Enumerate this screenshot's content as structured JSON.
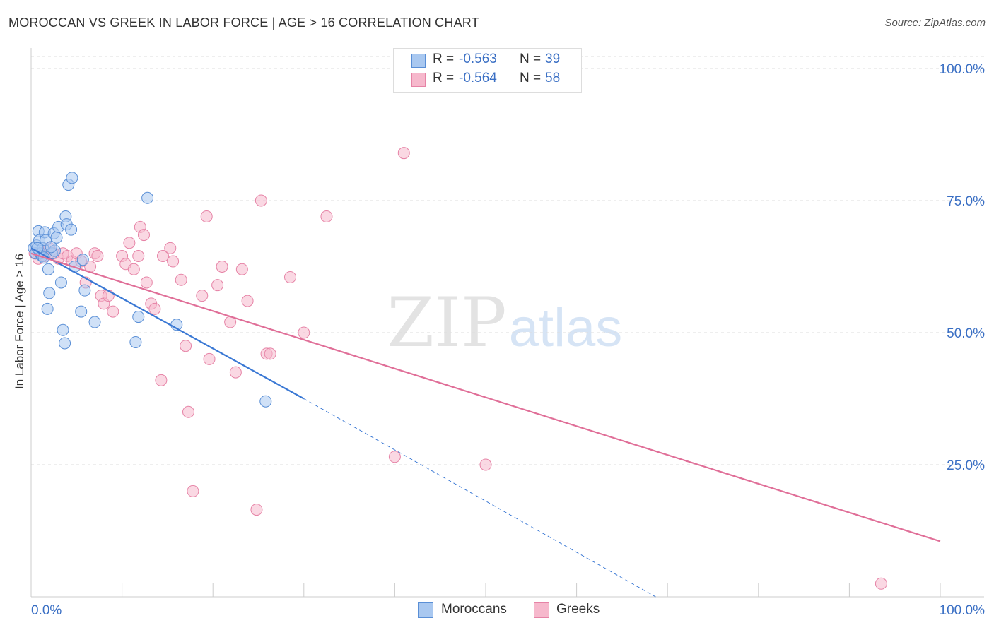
{
  "title": "MOROCCAN VS GREEK IN LABOR FORCE | AGE > 16 CORRELATION CHART",
  "source": "Source: ZipAtlas.com",
  "watermark": {
    "zip": "ZIP",
    "atlas": "atlas"
  },
  "legend": {
    "rows": [
      {
        "r_label": "R =",
        "r_value": "-0.563",
        "n_label": "N =",
        "n_value": "39"
      },
      {
        "r_label": "R =",
        "r_value": "-0.564",
        "n_label": "N =",
        "n_value": "58"
      }
    ]
  },
  "bottom_legend": {
    "moroccans": "Moroccans",
    "greeks": "Greeks"
  },
  "colors": {
    "moroccans_fill": "#a9c8f0",
    "moroccans_stroke": "#5a8fd6",
    "moroccans_line": "#3a78d4",
    "greeks_fill": "#f6b8cc",
    "greeks_stroke": "#e683a6",
    "greeks_line": "#e06f98",
    "tick_text": "#3a6fc4",
    "grid": "#dddddd"
  },
  "chart_data": {
    "type": "scatter",
    "title": "MOROCCAN VS GREEK IN LABOR FORCE | AGE > 16 CORRELATION CHART",
    "xlabel": "",
    "ylabel": "In Labor Force | Age > 16",
    "xlim": [
      0,
      100
    ],
    "ylim": [
      0,
      100
    ],
    "x_tick_labels": [
      {
        "value": 0,
        "label": "0.0%"
      },
      {
        "value": 100,
        "label": "100.0%"
      }
    ],
    "y_tick_labels": [
      {
        "value": 25,
        "label": "25.0%"
      },
      {
        "value": 50,
        "label": "50.0%"
      },
      {
        "value": 75,
        "label": "75.0%"
      },
      {
        "value": 100,
        "label": "100.0%"
      }
    ],
    "series": [
      {
        "name": "Moroccans",
        "r": -0.563,
        "n": 39,
        "points": [
          [
            0.3,
            66.0
          ],
          [
            0.5,
            65.0
          ],
          [
            0.6,
            66.5
          ],
          [
            0.8,
            69.2
          ],
          [
            0.9,
            67.5
          ],
          [
            1.0,
            65.0
          ],
          [
            1.2,
            64.5
          ],
          [
            1.3,
            66.0
          ],
          [
            1.5,
            69.0
          ],
          [
            1.6,
            67.5
          ],
          [
            1.8,
            54.5
          ],
          [
            1.9,
            62.0
          ],
          [
            2.0,
            57.5
          ],
          [
            2.3,
            65.0
          ],
          [
            2.5,
            68.8
          ],
          [
            2.6,
            65.5
          ],
          [
            2.8,
            68.0
          ],
          [
            3.0,
            70.0
          ],
          [
            3.3,
            59.5
          ],
          [
            3.5,
            50.5
          ],
          [
            3.7,
            48.0
          ],
          [
            3.8,
            72.0
          ],
          [
            3.9,
            70.5
          ],
          [
            4.1,
            78.0
          ],
          [
            4.4,
            69.5
          ],
          [
            4.5,
            79.3
          ],
          [
            4.8,
            62.5
          ],
          [
            5.5,
            54.0
          ],
          [
            5.7,
            63.8
          ],
          [
            5.9,
            58.0
          ],
          [
            7.0,
            52.0
          ],
          [
            11.5,
            48.2
          ],
          [
            11.8,
            53.0
          ],
          [
            12.8,
            75.5
          ],
          [
            16.0,
            51.5
          ],
          [
            0.7,
            66.0
          ],
          [
            1.4,
            64.2
          ],
          [
            2.2,
            66.2
          ],
          [
            25.8,
            37.0
          ]
        ],
        "trend": {
          "x0": 0,
          "y0": 66.0,
          "x1": 30,
          "y1": 37.5,
          "dashed_to_x": 68.7,
          "dashed_to_y": 0
        }
      },
      {
        "name": "Greeks",
        "r": -0.564,
        "n": 58,
        "points": [
          [
            0.4,
            65.0
          ],
          [
            0.8,
            64.0
          ],
          [
            1.2,
            65.0
          ],
          [
            1.5,
            64.5
          ],
          [
            2.0,
            66.0
          ],
          [
            2.5,
            65.0
          ],
          [
            3.0,
            64.0
          ],
          [
            3.5,
            65.0
          ],
          [
            4.0,
            64.5
          ],
          [
            4.5,
            63.5
          ],
          [
            5.0,
            65.0
          ],
          [
            5.5,
            63.5
          ],
          [
            6.0,
            59.5
          ],
          [
            6.5,
            62.5
          ],
          [
            7.0,
            65.0
          ],
          [
            7.3,
            64.5
          ],
          [
            7.7,
            57.0
          ],
          [
            8.0,
            55.5
          ],
          [
            8.5,
            57.0
          ],
          [
            9.0,
            54.0
          ],
          [
            10.0,
            64.5
          ],
          [
            10.4,
            63.0
          ],
          [
            10.8,
            67.0
          ],
          [
            11.3,
            62.0
          ],
          [
            11.8,
            64.5
          ],
          [
            12.0,
            70.0
          ],
          [
            12.4,
            68.5
          ],
          [
            12.7,
            59.5
          ],
          [
            13.2,
            55.5
          ],
          [
            13.6,
            54.5
          ],
          [
            14.5,
            64.5
          ],
          [
            15.3,
            66.0
          ],
          [
            15.6,
            63.5
          ],
          [
            16.5,
            60.0
          ],
          [
            17.0,
            47.5
          ],
          [
            17.3,
            35.0
          ],
          [
            17.8,
            20.0
          ],
          [
            18.8,
            57.0
          ],
          [
            19.3,
            72.0
          ],
          [
            19.6,
            45.0
          ],
          [
            20.5,
            59.0
          ],
          [
            21.0,
            62.5
          ],
          [
            21.9,
            52.0
          ],
          [
            22.5,
            42.5
          ],
          [
            23.2,
            62.0
          ],
          [
            23.8,
            56.0
          ],
          [
            24.8,
            16.5
          ],
          [
            25.3,
            75.0
          ],
          [
            25.9,
            46.0
          ],
          [
            26.3,
            46.0
          ],
          [
            28.5,
            60.5
          ],
          [
            30.0,
            50.0
          ],
          [
            32.5,
            72.0
          ],
          [
            40.0,
            26.5
          ],
          [
            41.0,
            84.0
          ],
          [
            50.0,
            25.0
          ],
          [
            93.5,
            2.5
          ],
          [
            14.3,
            41.0
          ]
        ],
        "trend": {
          "x0": 0,
          "y0": 65.0,
          "x1": 100,
          "y1": 10.5
        }
      }
    ]
  }
}
